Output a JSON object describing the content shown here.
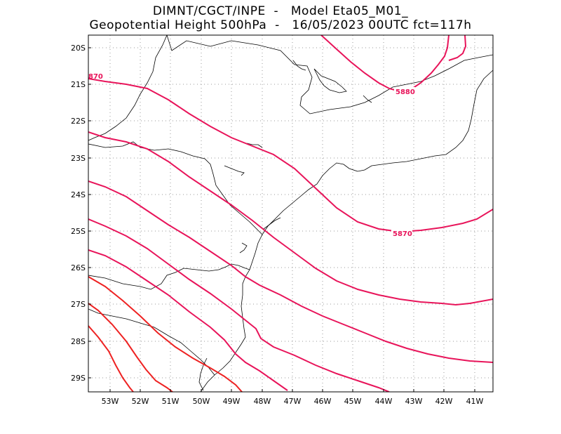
{
  "header": {
    "line1": "DIMNT/CGCT/INPE  -   Model Eta05_M01_",
    "line2": "Geopotential Height 500hPa  -   16/05/2023 00UTC fct=117h"
  },
  "axes": {
    "lat_labels": [
      "20S",
      "21S",
      "22S",
      "23S",
      "24S",
      "25S",
      "26S",
      "27S",
      "28S",
      "29S"
    ],
    "lon_labels": [
      "53W",
      "52W",
      "51W",
      "50W",
      "49W",
      "48W",
      "47W",
      "46W",
      "45W",
      "44W",
      "43W",
      "42W",
      "41W"
    ]
  },
  "colors": {
    "contour_pink": "#e8145a",
    "contour_red": "#ee2222",
    "coast": "#000000",
    "grid": "#9a9a9a"
  },
  "contour_labels": [
    {
      "text": "5880"
    },
    {
      "text": "5870"
    },
    {
      "text": "870"
    }
  ]
}
